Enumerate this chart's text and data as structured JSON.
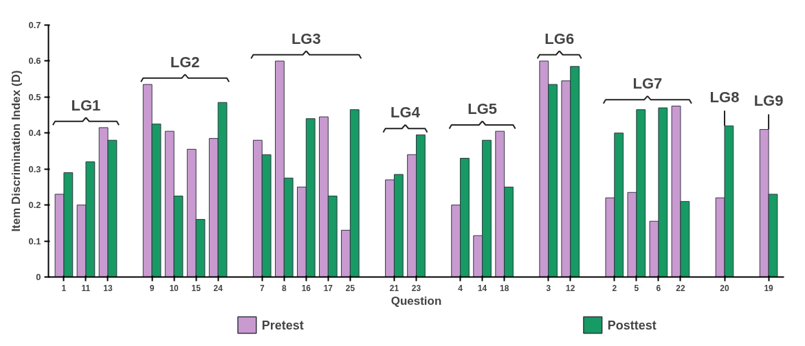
{
  "chart_data": {
    "type": "bar",
    "ylabel": "Item Discrimination Index (D)",
    "xlabel": "Question",
    "categories": [
      "1",
      "11",
      "13",
      null,
      "9",
      "10",
      "15",
      "24",
      null,
      "7",
      "8",
      "16",
      "17",
      "25",
      null,
      "21",
      "23",
      null,
      "4",
      "14",
      "18",
      null,
      "3",
      "12",
      null,
      "2",
      "5",
      "6",
      "22",
      null,
      "20",
      null,
      "19"
    ],
    "series": [
      {
        "name": "Pretest",
        "color": "#c89ad0",
        "values": [
          0.23,
          0.2,
          0.415,
          null,
          0.535,
          0.405,
          0.355,
          0.385,
          null,
          0.38,
          0.6,
          0.25,
          0.445,
          0.13,
          null,
          0.27,
          0.34,
          null,
          0.2,
          0.115,
          0.405,
          null,
          0.6,
          0.545,
          null,
          0.22,
          0.235,
          0.155,
          0.475,
          null,
          0.22,
          null,
          0.41
        ]
      },
      {
        "name": "Posttest",
        "color": "#179a63",
        "values": [
          0.29,
          0.32,
          0.38,
          null,
          0.425,
          0.225,
          0.16,
          0.485,
          null,
          0.34,
          0.275,
          0.44,
          0.225,
          0.465,
          null,
          0.285,
          0.395,
          null,
          0.33,
          0.38,
          0.25,
          null,
          0.535,
          0.585,
          null,
          0.4,
          0.465,
          0.47,
          0.21,
          null,
          0.42,
          null,
          0.23
        ]
      }
    ],
    "annotations": [
      "LG1",
      "LG2",
      "LG3",
      "LG4",
      "LG5",
      "LG6",
      "LG7",
      {
        "text": "LG8",
        "x": "20",
        "y": 0.42
      },
      {
        "text": "LG9",
        "x": "19",
        "y": 0.41
      }
    ],
    "ylim": [
      0,
      0.7
    ],
    "yticks": [
      0,
      0.1,
      0.2,
      0.3,
      0.4,
      0.5,
      0.6,
      0.7
    ],
    "grid": false,
    "legend": "bottom"
  }
}
